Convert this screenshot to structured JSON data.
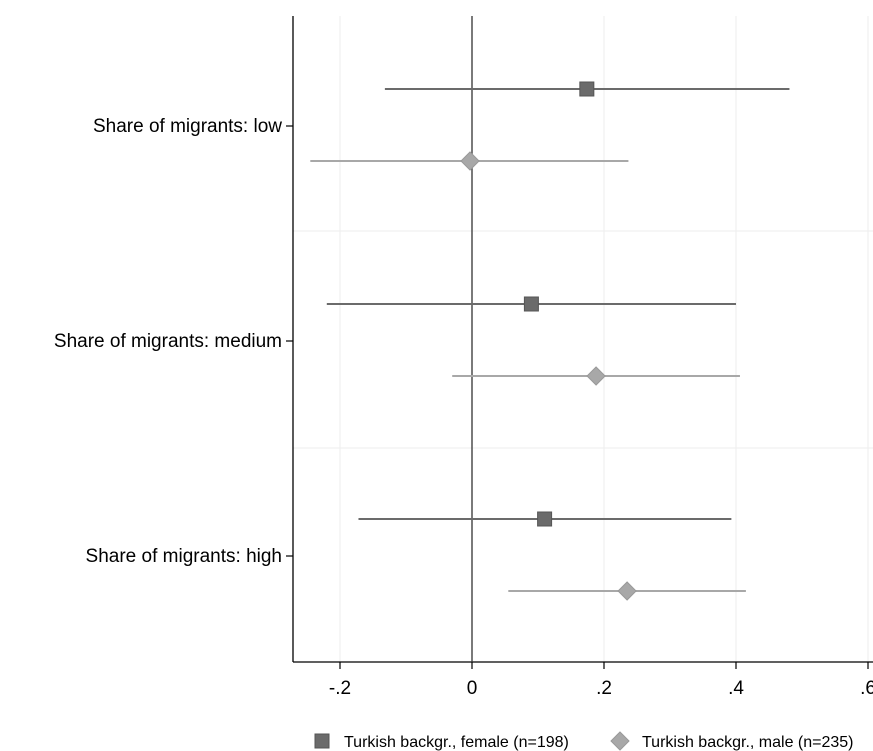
{
  "chart_data": {
    "type": "scatter",
    "subtype": "coefficient plot with confidence intervals",
    "title": "",
    "xlabel": "",
    "ylabel": "",
    "categories": [
      "Share of migrants: low",
      "Share of migrants: medium",
      "Share of migrants: high"
    ],
    "xlim": [
      -0.27,
      0.6
    ],
    "xticks": [
      -0.2,
      0,
      0.2,
      0.4,
      0.6
    ],
    "xtick_labels": [
      "-.2",
      "0",
      ".2",
      ".4",
      ".6"
    ],
    "reference_line_x": 0,
    "grid": "vertical and horizontal light gridlines",
    "legend_position": "bottom",
    "series": [
      {
        "name": "Turkish backgr., female (n=198)",
        "marker": "square",
        "color": "#6b6b6b",
        "points": [
          {
            "category": "Share of migrants: low",
            "estimate": 0.174,
            "ci_low": -0.132,
            "ci_high": 0.481
          },
          {
            "category": "Share of migrants: medium",
            "estimate": 0.09,
            "ci_low": -0.22,
            "ci_high": 0.4
          },
          {
            "category": "Share of migrants: high",
            "estimate": 0.11,
            "ci_low": -0.172,
            "ci_high": 0.393
          }
        ]
      },
      {
        "name": "Turkish backgr., male (n=235)",
        "marker": "diamond",
        "color": "#a8a8a8",
        "points": [
          {
            "category": "Share of migrants: low",
            "estimate": -0.003,
            "ci_low": -0.245,
            "ci_high": 0.237
          },
          {
            "category": "Share of migrants: medium",
            "estimate": 0.188,
            "ci_low": -0.03,
            "ci_high": 0.406
          },
          {
            "category": "Share of migrants: high",
            "estimate": 0.235,
            "ci_low": 0.055,
            "ci_high": 0.415
          }
        ]
      }
    ]
  }
}
